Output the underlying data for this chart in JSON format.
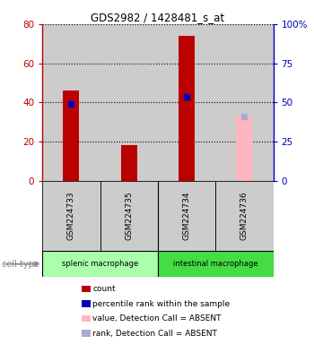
{
  "title": "GDS2982 / 1428481_s_at",
  "samples": [
    "GSM224733",
    "GSM224735",
    "GSM224734",
    "GSM224736"
  ],
  "count_values": [
    46,
    18,
    74,
    null
  ],
  "rank_values": [
    39,
    null,
    43,
    null
  ],
  "absent_value": [
    null,
    null,
    null,
    33
  ],
  "absent_rank": [
    null,
    null,
    null,
    33
  ],
  "left_ylim": [
    0,
    80
  ],
  "right_ylim": [
    0,
    100
  ],
  "left_yticks": [
    0,
    20,
    40,
    60,
    80
  ],
  "right_yticks": [
    0,
    25,
    50,
    75,
    100
  ],
  "right_yticklabels": [
    "0",
    "25",
    "50",
    "75",
    "100%"
  ],
  "bar_color_red": "#BB0000",
  "bar_color_blue": "#0000BB",
  "bar_color_pink": "#FFB6C1",
  "bar_color_lightblue": "#AAAACC",
  "sample_bg_color": "#CCCCCC",
  "group1_color": "#AAFFAA",
  "group2_color": "#44DD44",
  "group1_label": "splenic macrophage",
  "group2_label": "intestinal macrophage",
  "legend_items": [
    [
      "#BB0000",
      "count"
    ],
    [
      "#0000BB",
      "percentile rank within the sample"
    ],
    [
      "#FFB6C1",
      "value, Detection Call = ABSENT"
    ],
    [
      "#AAAACC",
      "rank, Detection Call = ABSENT"
    ]
  ]
}
